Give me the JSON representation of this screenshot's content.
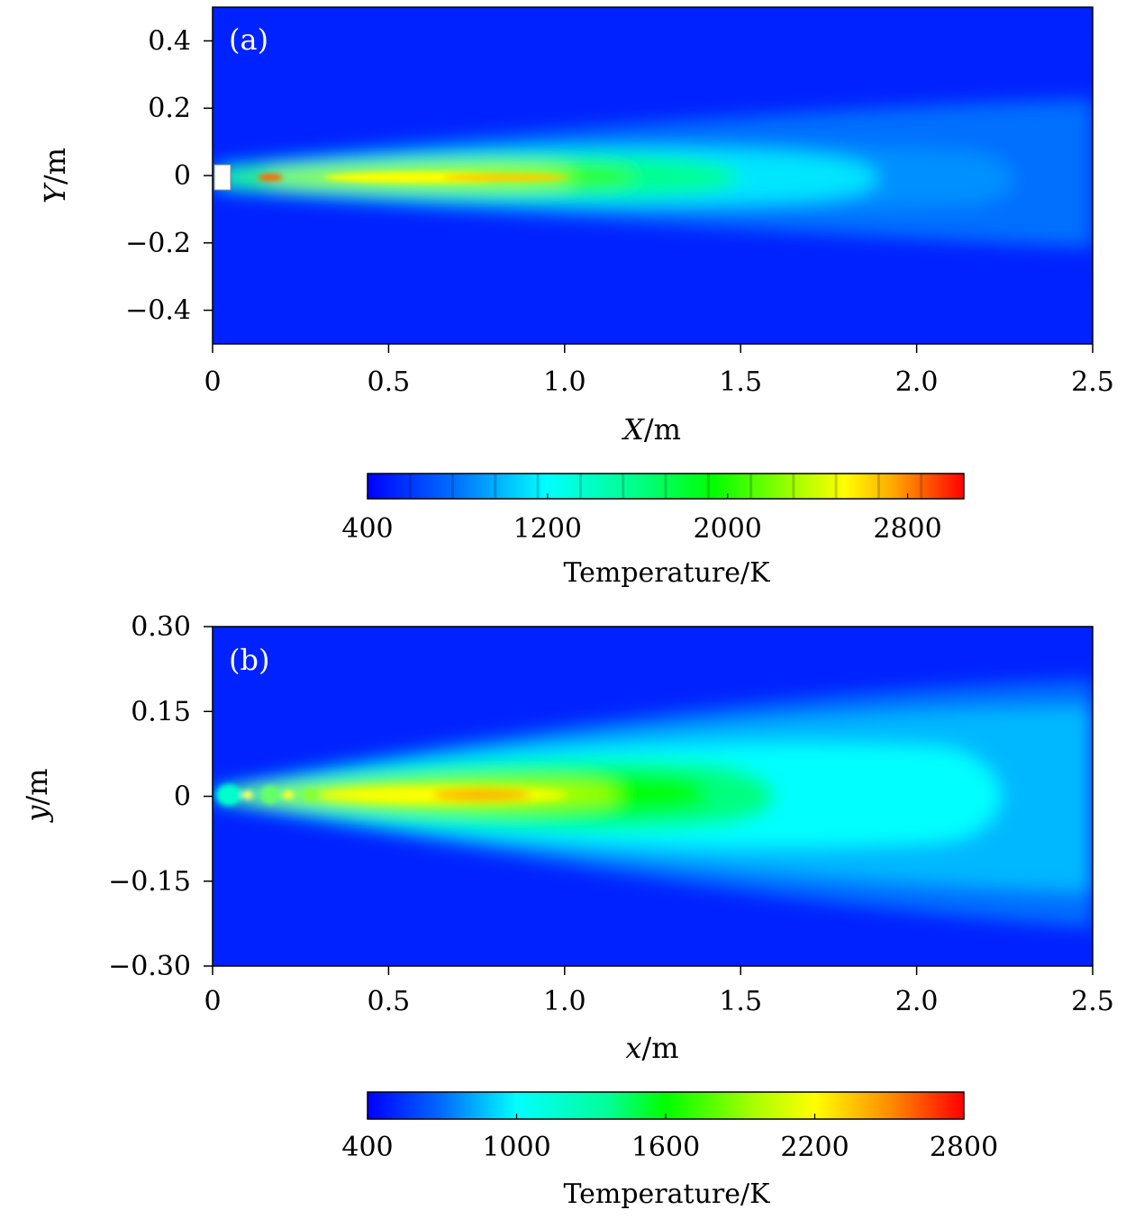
{
  "chart_data": [
    {
      "type": "heatmap",
      "panel_label": "(a)",
      "xlabel_var": "X",
      "xlabel_unit": "/m",
      "ylabel_var": "Y",
      "ylabel_unit": "/m",
      "xlim": [
        0,
        2.5
      ],
      "ylim": [
        -0.5,
        0.5
      ],
      "xticks": [
        0,
        0.5,
        1.0,
        1.5,
        2.0,
        2.5
      ],
      "xtick_labels": [
        "0",
        "0.5",
        "1.0",
        "1.5",
        "2.0",
        "2.5"
      ],
      "yticks": [
        0.4,
        0.2,
        0,
        -0.2,
        -0.4
      ],
      "ytick_labels": [
        "0.4",
        "0.2",
        "0",
        "−0.2",
        "−0.4"
      ],
      "field": "temperature plume along centerline",
      "peak_temperature_K": 2700,
      "peak_x_m": 0.8,
      "nozzle_marker_x_m": 0.03,
      "colorbar": {
        "label": "Temperature/K",
        "range": [
          400,
          3050
        ],
        "ticks": [
          400,
          1200,
          2000,
          2800
        ],
        "tick_labels": [
          "400",
          "1200",
          "2000",
          "2800"
        ],
        "discrete_levels": 14,
        "colors": [
          "#0000ff",
          "#0080ff",
          "#00ffff",
          "#00ff80",
          "#00ff00",
          "#ffff00",
          "#ff8000",
          "#ff0000"
        ]
      }
    },
    {
      "type": "heatmap",
      "panel_label": "(b)",
      "xlabel_var": "x",
      "xlabel_unit": "/m",
      "ylabel_var": "y",
      "ylabel_unit": "/m",
      "xlim": [
        0,
        2.5
      ],
      "ylim": [
        -0.3,
        0.3
      ],
      "xticks": [
        0,
        0.5,
        1.0,
        1.5,
        2.0,
        2.5
      ],
      "xtick_labels": [
        "0",
        "0.5",
        "1.0",
        "1.5",
        "2.0",
        "2.5"
      ],
      "yticks": [
        0.3,
        0.15,
        0,
        -0.15,
        -0.3
      ],
      "ytick_labels": [
        "0.30",
        "0.15",
        "0",
        "−0.15",
        "−0.30"
      ],
      "field": "temperature plume along centerline",
      "peak_temperature_K": 2450,
      "peak_x_m": 0.75,
      "colorbar": {
        "label": "Temperature/K",
        "range": [
          400,
          2800
        ],
        "ticks": [
          400,
          1000,
          1600,
          2200,
          2800
        ],
        "tick_labels": [
          "400",
          "1000",
          "1600",
          "2200",
          "2800"
        ],
        "colors": [
          "#0000ff",
          "#0080ff",
          "#00ffff",
          "#00ff80",
          "#00ff00",
          "#ffff00",
          "#ff8000",
          "#ff0000"
        ]
      }
    }
  ]
}
